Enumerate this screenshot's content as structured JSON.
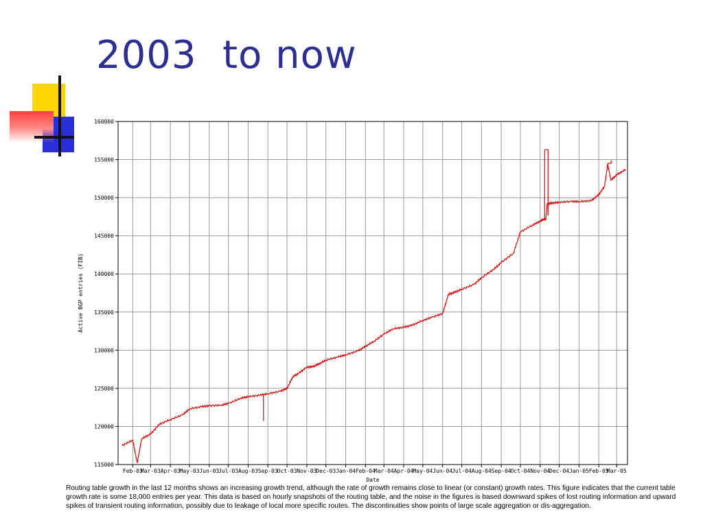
{
  "slide": {
    "title": "2003  to now",
    "caption": "Routing table growth in the last 12 months shows an increasing growth trend, although the rate of growth remains close to linear (or constant) growth rates. This figure indicates that the current table growth rate is some 18,000 entries per year. This data is based on hourly snapshots of the routing table, and the noise in the figures is based downward spikes of lost routing information and upward spikes of transient routing information, possibly due to leakage of local more specific routes. The discontinuities show points of large scale aggregation or dis-aggregation."
  },
  "colors": {
    "title": "#2c2f8f",
    "series": "#e00000",
    "grid": "#999999",
    "deco_yellow": "#ffd400",
    "deco_blue": "#2a2ed8",
    "deco_red": "#ff4040"
  },
  "chart_data": {
    "type": "line",
    "title": "",
    "xlabel": "Date",
    "ylabel": "Active BGP entries (FIB)",
    "ylim": [
      115000,
      160000
    ],
    "grid": true,
    "legend": "none",
    "y_ticks": [
      "115000",
      "120000",
      "125000",
      "130000",
      "135000",
      "140000",
      "145000",
      "150000",
      "155000",
      "160000"
    ],
    "x_ticks": [
      "Feb-03",
      "Mar-03",
      "Apr-03",
      "May-03",
      "Jun-03",
      "Jul-03",
      "Aug-03",
      "Sep-03",
      "Oct-03",
      "Nov-03",
      "Dec-03",
      "Jan-04",
      "Feb-04",
      "Mar-04",
      "Apr-04",
      "May-04",
      "Jun-04",
      "Jul-04",
      "Aug-04",
      "Sep-04",
      "Oct-04",
      "Nov-04",
      "Dec-04",
      "Jan-05",
      "Feb-05",
      "Mar-05"
    ],
    "series": [
      {
        "x": [
          "2003-01-15",
          "2003-02-01",
          "2003-02-08",
          "2003-02-15",
          "2003-03-01",
          "2003-03-15",
          "2003-04-01",
          "2003-04-20",
          "2003-05-01",
          "2003-05-20",
          "2003-06-01",
          "2003-06-20",
          "2003-07-01",
          "2003-07-20",
          "2003-08-01",
          "2003-08-20",
          "2003-09-01",
          "2003-09-20",
          "2003-10-01",
          "2003-10-10",
          "2003-10-20",
          "2003-11-01",
          "2003-11-10",
          "2003-11-20",
          "2003-12-01",
          "2003-12-20",
          "2004-01-01",
          "2004-01-20",
          "2004-02-01",
          "2004-02-15",
          "2004-03-01",
          "2004-03-15",
          "2004-04-01",
          "2004-04-15",
          "2004-05-01",
          "2004-05-15",
          "2004-06-01",
          "2004-06-10",
          "2004-06-20",
          "2004-07-01",
          "2004-07-20",
          "2004-08-01",
          "2004-08-20",
          "2004-09-01",
          "2004-09-20",
          "2004-10-01",
          "2004-10-20",
          "2004-11-01",
          "2004-11-05",
          "2004-11-10",
          "2004-11-12",
          "2004-11-20",
          "2004-12-01",
          "2004-12-20",
          "2005-01-01",
          "2005-01-20",
          "2005-02-01",
          "2005-02-10",
          "2005-02-15",
          "2005-02-20",
          "2005-03-01",
          "2005-03-15"
        ],
        "values": [
          117500,
          118200,
          115200,
          118400,
          119000,
          120300,
          120900,
          121500,
          122300,
          122600,
          122700,
          122800,
          123000,
          123700,
          123900,
          124100,
          124300,
          124600,
          125000,
          126500,
          127000,
          127800,
          127800,
          128200,
          128700,
          129100,
          129400,
          129900,
          130500,
          131200,
          132100,
          132800,
          133000,
          133300,
          133900,
          134300,
          134800,
          137300,
          137600,
          138000,
          138600,
          139500,
          140600,
          141500,
          142700,
          145500,
          146400,
          146900,
          147100,
          147200,
          149200,
          149300,
          149400,
          149500,
          149500,
          149600,
          150400,
          151500,
          154400,
          152300,
          153000,
          153700
        ],
        "spikes": [
          {
            "x": "2003-02-08",
            "values": [
              115200
            ]
          },
          {
            "x": "2003-08-25",
            "values": [
              120700
            ]
          },
          {
            "x": "2004-11-08",
            "values": [
              156300
            ]
          },
          {
            "x": "2005-02-15",
            "values": [
              154500
            ]
          }
        ]
      }
    ]
  }
}
